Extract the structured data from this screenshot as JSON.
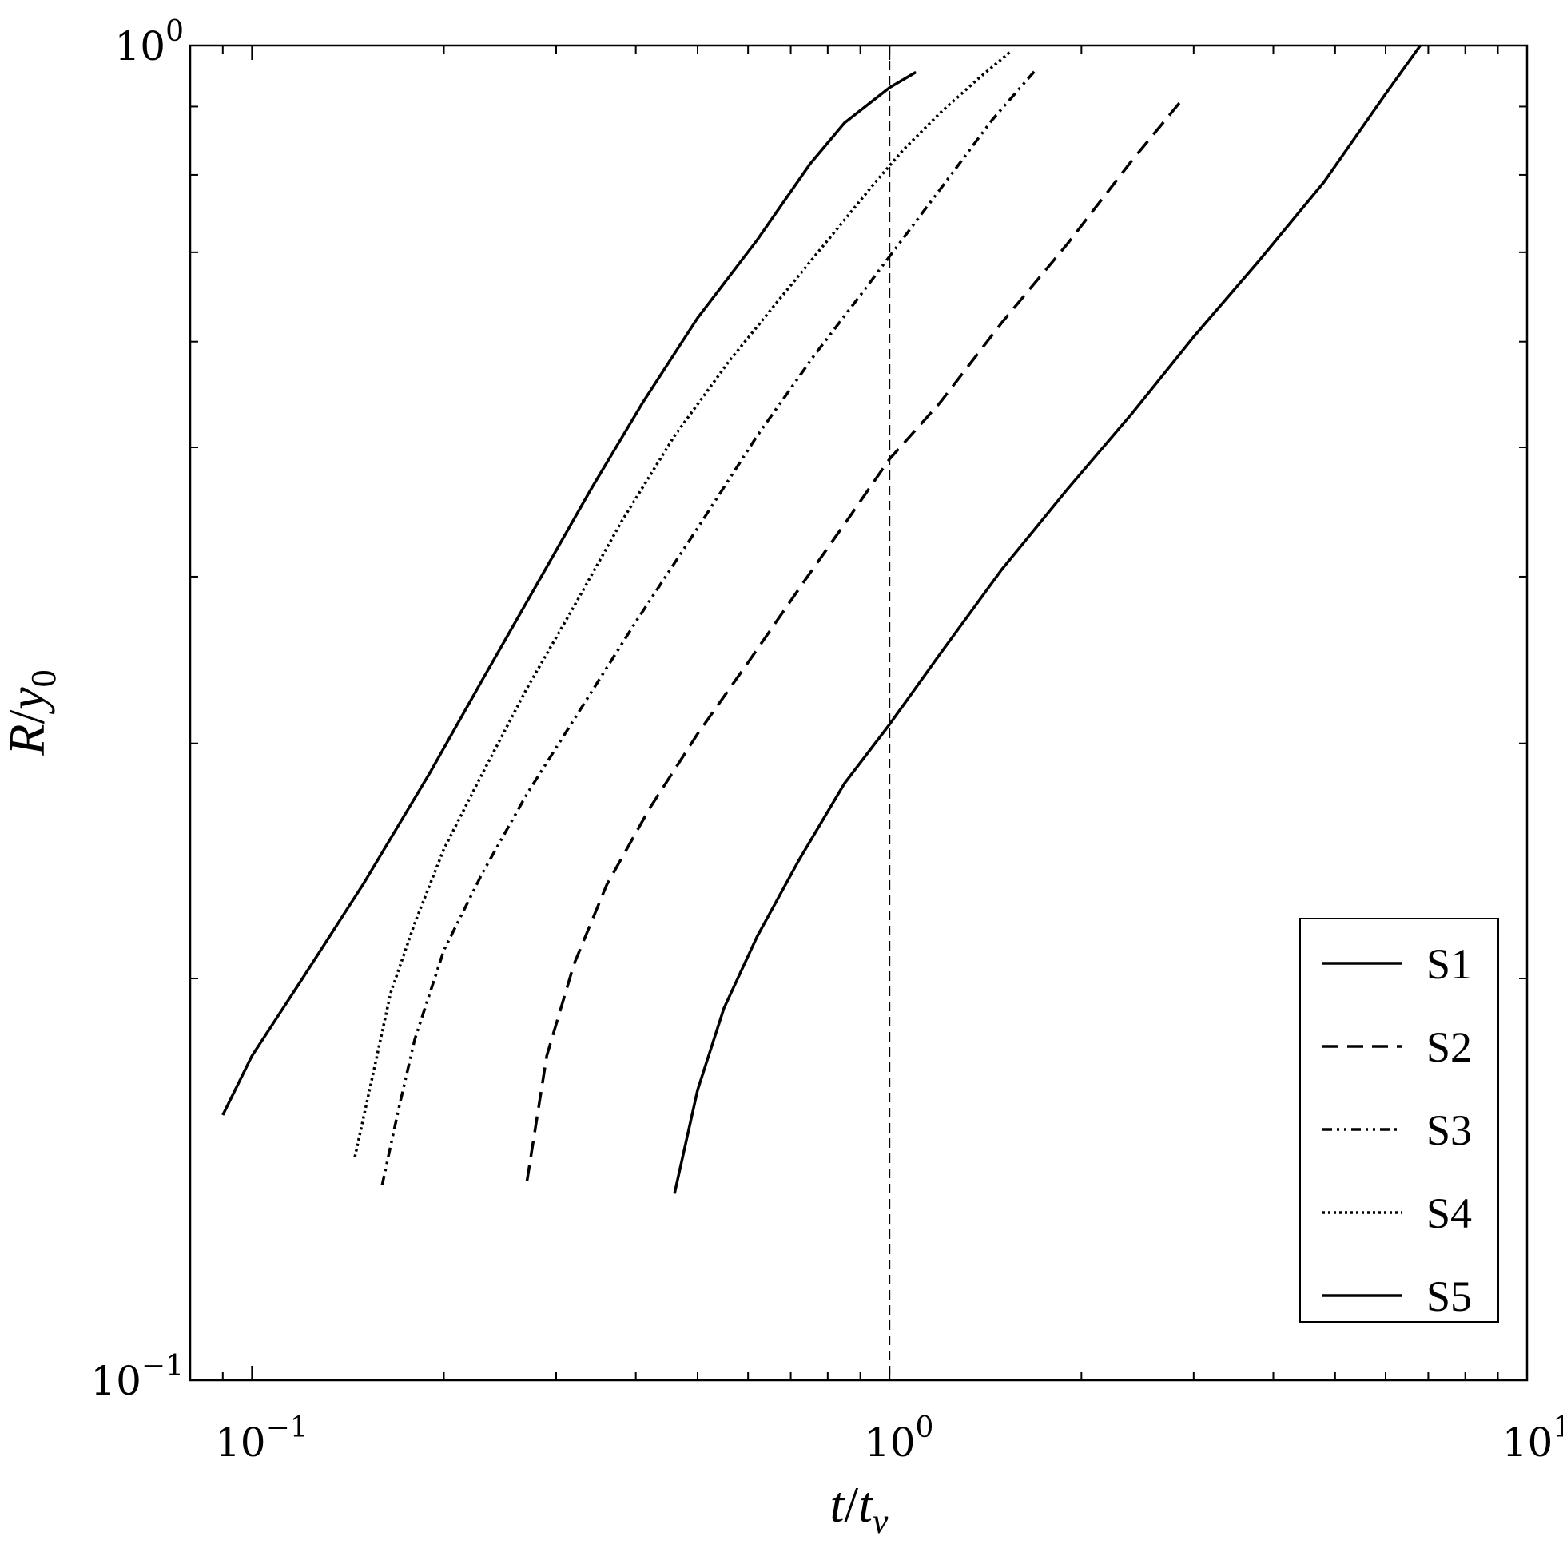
{
  "chart_data": {
    "type": "line",
    "xscale": "log",
    "yscale": "log",
    "xlim": [
      0.08,
      10
    ],
    "ylim": [
      0.1,
      1
    ],
    "xlabel_main": "t",
    "xlabel_sep": "/",
    "xlabel_var": "t",
    "xlabel_sub": "v",
    "ylabel_main": "R",
    "ylabel_sep": "/",
    "ylabel_var": "y",
    "ylabel_sub": "0",
    "xticks": [
      {
        "value": 0.1,
        "base": "10",
        "exp": "−1"
      },
      {
        "value": 1,
        "base": "10",
        "exp": "0"
      },
      {
        "value": 10,
        "base": "10",
        "exp": "1"
      }
    ],
    "yticks": [
      {
        "value": 0.1,
        "base": "10",
        "exp": "−1"
      },
      {
        "value": 1,
        "base": "10",
        "exp": "0"
      }
    ],
    "vline": {
      "x": 1,
      "style": "dashed"
    },
    "legend": {
      "position": "bottom-right"
    },
    "series": [
      {
        "name": "S1",
        "style": "solid",
        "x": [
          0.09,
          0.1,
          0.12,
          0.15,
          0.19,
          0.23,
          0.28,
          0.34,
          0.41,
          0.5,
          0.62,
          0.75,
          0.85,
          1.0,
          1.1
        ],
        "y": [
          0.158,
          0.175,
          0.2,
          0.236,
          0.285,
          0.335,
          0.395,
          0.465,
          0.54,
          0.625,
          0.715,
          0.815,
          0.875,
          0.93,
          0.955
        ]
      },
      {
        "name": "S2",
        "style": "dashed",
        "x": [
          0.27,
          0.29,
          0.32,
          0.36,
          0.42,
          0.5,
          0.6,
          0.73,
          0.87,
          1.0,
          1.2,
          1.5,
          1.9,
          2.4,
          2.9
        ],
        "y": [
          0.141,
          0.175,
          0.205,
          0.235,
          0.268,
          0.305,
          0.345,
          0.395,
          0.445,
          0.49,
          0.54,
          0.62,
          0.71,
          0.82,
          0.915
        ]
      },
      {
        "name": "S3",
        "style": "dashdot",
        "x": [
          0.16,
          0.17,
          0.18,
          0.2,
          0.23,
          0.27,
          0.33,
          0.4,
          0.5,
          0.62,
          0.76,
          0.9,
          1.0,
          1.2,
          1.45,
          1.7
        ],
        "y": [
          0.14,
          0.16,
          0.18,
          0.21,
          0.24,
          0.275,
          0.32,
          0.37,
          0.435,
          0.51,
          0.585,
          0.65,
          0.695,
          0.78,
          0.88,
          0.96
        ]
      },
      {
        "name": "S4",
        "style": "dotted",
        "x": [
          0.145,
          0.155,
          0.165,
          0.18,
          0.2,
          0.23,
          0.27,
          0.32,
          0.38,
          0.46,
          0.56,
          0.68,
          0.82,
          0.95,
          1.05,
          1.2,
          1.38,
          1.55
        ],
        "y": [
          0.147,
          0.17,
          0.195,
          0.22,
          0.25,
          0.285,
          0.33,
          0.38,
          0.44,
          0.51,
          0.58,
          0.65,
          0.725,
          0.79,
          0.835,
          0.89,
          0.945,
          0.99
        ]
      },
      {
        "name": "S5",
        "style": "solid",
        "x": [
          0.46,
          0.5,
          0.55,
          0.62,
          0.72,
          0.85,
          1.0,
          1.2,
          1.5,
          1.9,
          2.4,
          3.0,
          3.8,
          4.8,
          6.0,
          6.8
        ],
        "y": [
          0.138,
          0.165,
          0.19,
          0.215,
          0.245,
          0.28,
          0.31,
          0.35,
          0.405,
          0.465,
          0.53,
          0.605,
          0.69,
          0.79,
          0.92,
          1.0
        ]
      }
    ]
  }
}
